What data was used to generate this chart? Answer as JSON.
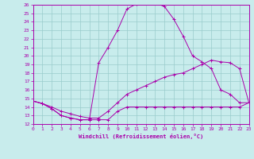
{
  "xlabel": "Windchill (Refroidissement éolien,°C)",
  "xlim": [
    0,
    23
  ],
  "ylim": [
    12,
    26
  ],
  "yticks": [
    12,
    13,
    14,
    15,
    16,
    17,
    18,
    19,
    20,
    21,
    22,
    23,
    24,
    25,
    26
  ],
  "xticks": [
    0,
    1,
    2,
    3,
    4,
    5,
    6,
    7,
    8,
    9,
    10,
    11,
    12,
    13,
    14,
    15,
    16,
    17,
    18,
    19,
    20,
    21,
    22,
    23
  ],
  "bg_color": "#c8ecec",
  "line_color": "#aa00aa",
  "grid_color": "#99cccc",
  "curve1_x": [
    0,
    1,
    2,
    3,
    4,
    5,
    6,
    7,
    8,
    9,
    10,
    11,
    12,
    13,
    14,
    15,
    16,
    17,
    18,
    19,
    20,
    21,
    22,
    23
  ],
  "curve1_y": [
    14.7,
    14.4,
    13.8,
    13.0,
    12.7,
    12.5,
    12.5,
    12.5,
    12.5,
    13.5,
    14.0,
    14.0,
    14.0,
    14.0,
    14.0,
    14.0,
    14.0,
    14.0,
    14.0,
    14.0,
    14.0,
    14.0,
    14.0,
    14.5
  ],
  "curve2_x": [
    0,
    1,
    2,
    3,
    4,
    5,
    6,
    7,
    8,
    9,
    10,
    11,
    12,
    13,
    14,
    15,
    16,
    17,
    18,
    19,
    20,
    21,
    22,
    23
  ],
  "curve2_y": [
    14.7,
    14.4,
    13.8,
    13.0,
    12.7,
    12.5,
    12.5,
    19.2,
    21.0,
    23.0,
    25.5,
    26.1,
    26.4,
    26.2,
    25.8,
    24.3,
    22.3,
    20.0,
    19.3,
    18.5,
    16.0,
    15.5,
    14.5,
    14.5
  ],
  "curve3_x": [
    0,
    1,
    2,
    3,
    4,
    5,
    6,
    7,
    8,
    9,
    10,
    11,
    12,
    13,
    14,
    15,
    16,
    17,
    18,
    19,
    20,
    21,
    22,
    23
  ],
  "curve3_y": [
    14.7,
    14.4,
    14.0,
    13.5,
    13.2,
    12.9,
    12.7,
    12.7,
    13.5,
    14.5,
    15.5,
    16.0,
    16.5,
    17.0,
    17.5,
    17.8,
    18.0,
    18.5,
    19.0,
    19.5,
    19.3,
    19.2,
    18.5,
    14.5
  ]
}
